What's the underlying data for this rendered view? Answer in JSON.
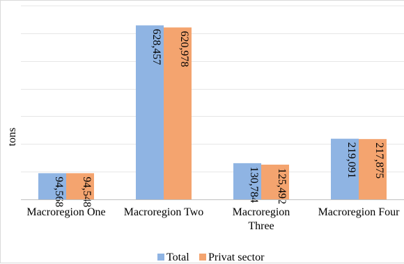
{
  "chart_data": {
    "type": "bar",
    "title": "",
    "xlabel": "",
    "ylabel": "tons",
    "categories": [
      [
        "Macroregion One"
      ],
      [
        "Macroregion Two"
      ],
      [
        "Macroregion",
        "Three"
      ],
      [
        "Macroregion Four"
      ]
    ],
    "series": [
      {
        "name": "Total",
        "color": "#8fb4e3",
        "values": [
          94568,
          628457,
          130784,
          219091
        ],
        "labels": [
          "94,568",
          "628,457",
          "130,784",
          "219,091"
        ]
      },
      {
        "name": "Privat sector",
        "color": "#f4a46f",
        "values": [
          94548,
          620978,
          125492,
          217875
        ],
        "labels": [
          "94,548",
          "620,978",
          "125,492",
          "217,875"
        ]
      }
    ],
    "ylim": [
      0,
      700000
    ],
    "gridline_step": 100000,
    "grid": true,
    "legend": "bottom-center"
  }
}
